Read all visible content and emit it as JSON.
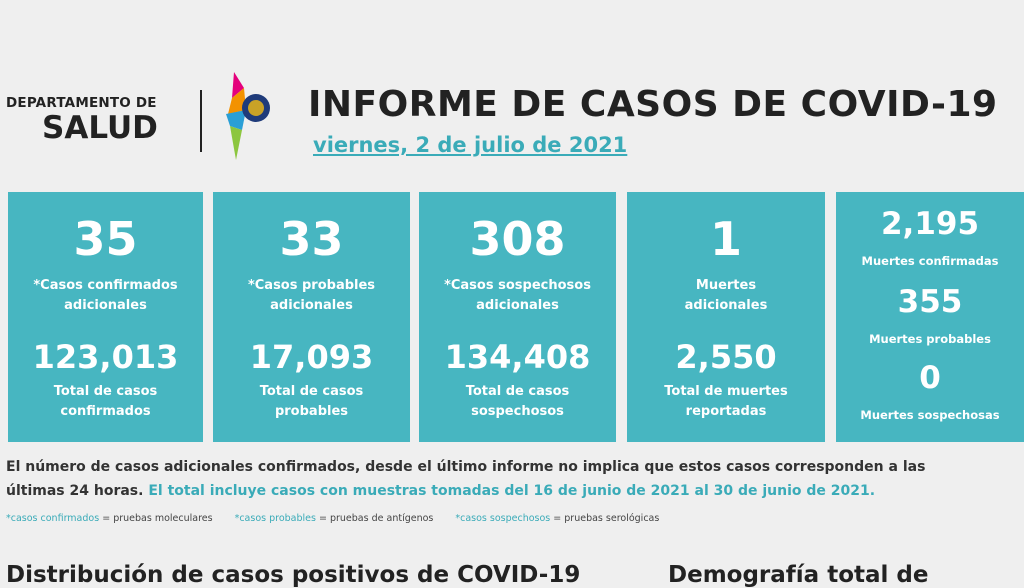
{
  "header": {
    "org_line1": "DEPARTAMENTO DE",
    "org_line2": "SALUD",
    "title": "INFORME DE CASOS DE COVID-19",
    "date": "viernes, 2 de julio de 2021"
  },
  "cards": [
    {
      "number": "35",
      "label": [
        "*Casos confirmados",
        "adicionales"
      ],
      "total": "123,013",
      "total_label": [
        "Total de casos",
        "confirmados"
      ]
    },
    {
      "number": "33",
      "label": [
        "*Casos probables",
        "adicionales"
      ],
      "total": "17,093",
      "total_label": [
        "Total de casos",
        "probables"
      ]
    },
    {
      "number": "308",
      "label": [
        "*Casos sospechosos",
        "adicionales"
      ],
      "total": "134,408",
      "total_label": [
        "Total de casos",
        "sospechosos"
      ]
    },
    {
      "number": "1",
      "label": [
        "Muertes",
        "adicionales"
      ],
      "total": "2,550",
      "total_label": [
        "Total de muertes",
        "reportadas"
      ]
    }
  ],
  "deaths": [
    {
      "number": "2,195",
      "label": "Muertes confirmadas"
    },
    {
      "number": "355",
      "label": "Muertes probables"
    },
    {
      "number": "0",
      "label": "Muertes sospechosas"
    }
  ],
  "notes": {
    "line1": "El número de casos adicionales confirmados, desde el último informe no implica que estos casos corresponden a las",
    "line2": "últimas 24 horas.",
    "line2_highlight": "El total incluye casos con muestras tomadas del 16 de junio de 2021 al 30 de junio de 2021."
  },
  "legend": [
    {
      "term": "*casos confirmados",
      "definition": "= pruebas moleculares"
    },
    {
      "term": "*casos probables",
      "definition": "= pruebas de antígenos"
    },
    {
      "term": "*casos sospechosos",
      "definition": "= pruebas serológicas"
    }
  ],
  "sections": [
    "Distribución de casos positivos de COVID-19",
    "Demografía total de"
  ]
}
